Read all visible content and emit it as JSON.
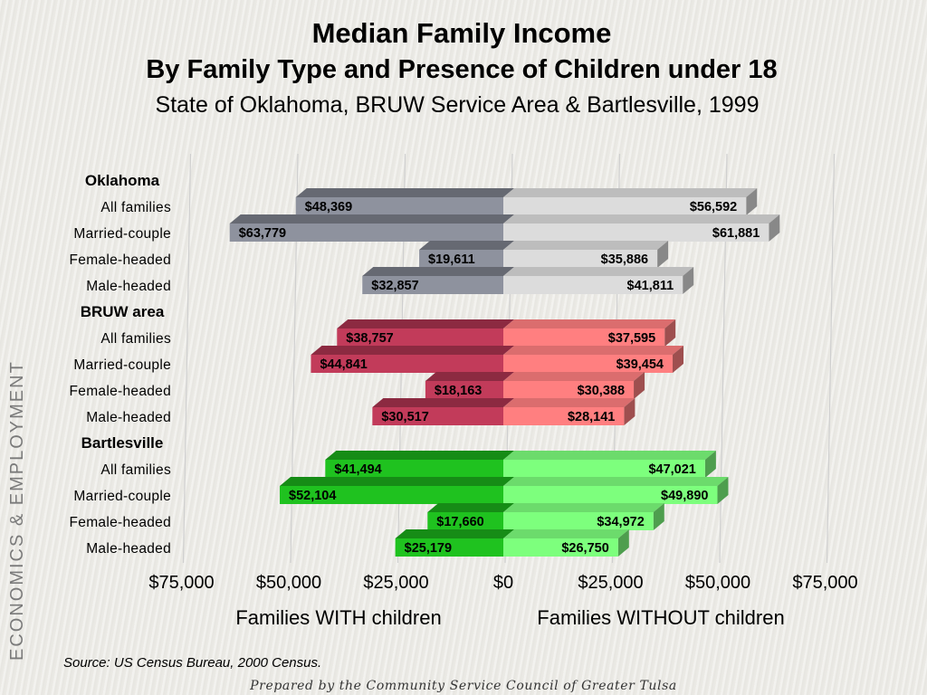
{
  "slide": {
    "section_tag": "ECONOMICS & EMPLOYMENT",
    "source": "Source:  US Census Bureau, 2000 Census.",
    "footer": "Prepared by the Community Service Council of Greater Tulsa"
  },
  "colors": {
    "oklahoma_with": "#8e929e",
    "oklahoma_without": "#dcdcdc",
    "bruw_with": "#c23b5a",
    "bruw_without": "#ff7f80",
    "bartlesville_with": "#1fc21f",
    "bartlesville_without": "#7dff7d"
  },
  "chart_data": {
    "type": "bar",
    "orientation": "horizontal",
    "layout": "diverging",
    "title": "Median Family Income",
    "title_line2": "By Family Type and Presence of Children under 18",
    "subtitle": "State of Oklahoma, BRUW Service Area & Bartlesville, 1999",
    "left_label": "Families WITH children",
    "right_label": "Families WITHOUT children",
    "xlim": [
      -75000,
      75000
    ],
    "x_ticks": [
      -75000,
      -50000,
      -25000,
      0,
      25000,
      50000,
      75000
    ],
    "x_tick_labels": [
      "$75,000",
      "$50,000",
      "$25,000",
      "$0",
      "$25,000",
      "$50,000",
      "$75,000"
    ],
    "grid": true,
    "legend": "none",
    "groups": [
      {
        "name": "Oklahoma",
        "color_key": "oklahoma",
        "categories": [
          "All families",
          "Married-couple",
          "Female-headed",
          "Male-headed"
        ],
        "with_children": [
          48369,
          63779,
          19611,
          32857
        ],
        "without_children": [
          56592,
          61881,
          35886,
          41811
        ],
        "with_labels": [
          "$48,369",
          "$63,779",
          "$19,611",
          "$32,857"
        ],
        "without_labels": [
          "$56,592",
          "$61,881",
          "$35,886",
          "$41,811"
        ]
      },
      {
        "name": "BRUW area",
        "color_key": "bruw",
        "categories": [
          "All families",
          "Married-couple",
          "Female-headed",
          "Male-headed"
        ],
        "with_children": [
          38757,
          44841,
          18163,
          30517
        ],
        "without_children": [
          37595,
          39454,
          30388,
          28141
        ],
        "with_labels": [
          "$38,757",
          "$44,841",
          "$18,163",
          "$30,517"
        ],
        "without_labels": [
          "$37,595",
          "$39,454",
          "$30,388",
          "$28,141"
        ]
      },
      {
        "name": "Bartlesville",
        "color_key": "bartlesville",
        "categories": [
          "All families",
          "Married-couple",
          "Female-headed",
          "Male-headed"
        ],
        "with_children": [
          41494,
          52104,
          17660,
          25179
        ],
        "without_children": [
          47021,
          49890,
          34972,
          26750
        ],
        "with_labels": [
          "$41,494",
          "$52,104",
          "$17,660",
          "$25,179"
        ],
        "without_labels": [
          "$47,021",
          "$49,890",
          "$34,972",
          "$26,750"
        ]
      }
    ]
  }
}
